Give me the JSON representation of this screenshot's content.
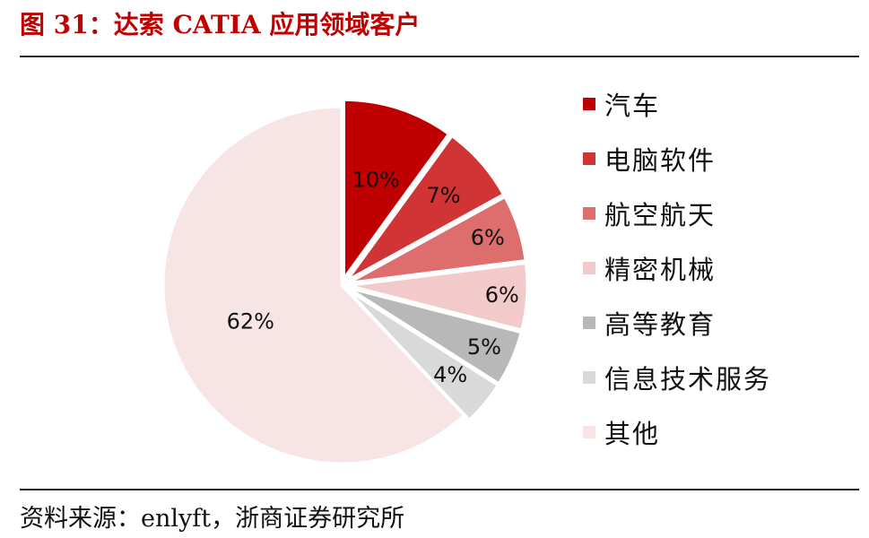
{
  "title": "图 31：达索 CATIA 应用领域客户",
  "source": "资料来源：enlyft，浙商证券研究所",
  "chart_data": {
    "type": "pie",
    "title": "图 31：达索 CATIA 应用领域客户",
    "unit": "%",
    "categories": [
      "汽车",
      "电脑软件",
      "航空航天",
      "精密机械",
      "高等教育",
      "信息技术服务",
      "其他"
    ],
    "values": [
      10,
      7,
      6,
      6,
      5,
      4,
      62
    ],
    "labels": [
      "10%",
      "7%",
      "6%",
      "6%",
      "5%",
      "4%",
      "62%"
    ],
    "colors": [
      "#c00000",
      "#d03434",
      "#de6e6e",
      "#f2caca",
      "#b8b8b8",
      "#d9d9d9",
      "#f7e5e5"
    ],
    "exploded": [
      true,
      true,
      true,
      true,
      true,
      true,
      false
    ],
    "legend_position": "right"
  }
}
